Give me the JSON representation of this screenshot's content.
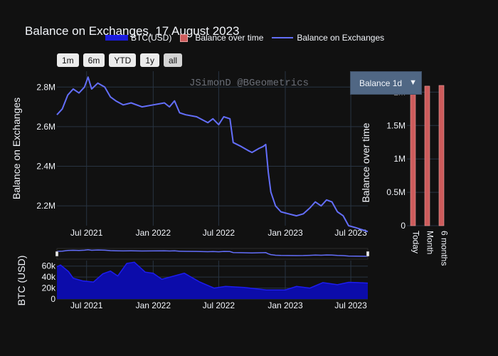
{
  "title": "Balance on Exchanges, 17 August 2023",
  "watermark": "JSimonD @BGeometrics",
  "legend": [
    {
      "name": "BTC(USD)",
      "color": "#1c1cf0",
      "type": "area"
    },
    {
      "name": "Balance over time",
      "color": "#cd5c5c",
      "type": "bar"
    },
    {
      "name": "Balance on Exchanges",
      "color": "#636efa",
      "type": "line"
    }
  ],
  "range_buttons": [
    "1m",
    "6m",
    "YTD",
    "1y",
    "all"
  ],
  "range_active": "all",
  "dropdown": {
    "selected": "Balance 1d",
    "caret": "▼"
  },
  "colors": {
    "background": "#111111",
    "grid": "#283442",
    "text": "#f2f5fa",
    "line": "#636efa",
    "area": "#0c0caa",
    "area_line": "#1c1cf0",
    "bar": "#cd5c5c"
  },
  "chart_data": [
    {
      "type": "line",
      "name": "Balance on Exchanges",
      "ylabel": "Balance on Exchanges",
      "x_range": [
        "2021-04-10",
        "2023-08-17"
      ],
      "x_ticks": [
        "2021-07-01",
        "2022-01-01",
        "2022-07-01",
        "2023-01-01",
        "2023-07-01"
      ],
      "x_tick_labels": [
        "Jul 2021",
        "Jan 2022",
        "Jul 2022",
        "Jan 2023",
        "Jul 2023"
      ],
      "ylim": [
        2100000,
        2880000
      ],
      "y_ticks": [
        2200000,
        2400000,
        2600000,
        2800000
      ],
      "y_tick_labels": [
        "2.2M",
        "2.4M",
        "2.6M",
        "2.8M"
      ],
      "points": [
        [
          "2021-04-10",
          2660000
        ],
        [
          "2021-04-25",
          2690000
        ],
        [
          "2021-05-10",
          2760000
        ],
        [
          "2021-05-25",
          2790000
        ],
        [
          "2021-06-10",
          2770000
        ],
        [
          "2021-06-25",
          2800000
        ],
        [
          "2021-07-05",
          2850000
        ],
        [
          "2021-07-15",
          2790000
        ],
        [
          "2021-08-01",
          2820000
        ],
        [
          "2021-08-20",
          2800000
        ],
        [
          "2021-09-05",
          2750000
        ],
        [
          "2021-09-20",
          2730000
        ],
        [
          "2021-10-10",
          2710000
        ],
        [
          "2021-11-01",
          2720000
        ],
        [
          "2021-12-01",
          2700000
        ],
        [
          "2022-01-01",
          2710000
        ],
        [
          "2022-02-01",
          2720000
        ],
        [
          "2022-02-15",
          2700000
        ],
        [
          "2022-03-01",
          2730000
        ],
        [
          "2022-03-15",
          2670000
        ],
        [
          "2022-04-01",
          2660000
        ],
        [
          "2022-05-01",
          2650000
        ],
        [
          "2022-06-01",
          2620000
        ],
        [
          "2022-06-15",
          2640000
        ],
        [
          "2022-07-01",
          2610000
        ],
        [
          "2022-07-15",
          2650000
        ],
        [
          "2022-08-01",
          2640000
        ],
        [
          "2022-08-10",
          2520000
        ],
        [
          "2022-09-01",
          2500000
        ],
        [
          "2022-09-20",
          2480000
        ],
        [
          "2022-10-01",
          2470000
        ],
        [
          "2022-10-20",
          2490000
        ],
        [
          "2022-11-01",
          2500000
        ],
        [
          "2022-11-08",
          2510000
        ],
        [
          "2022-11-15",
          2370000
        ],
        [
          "2022-11-22",
          2270000
        ],
        [
          "2022-12-05",
          2200000
        ],
        [
          "2022-12-20",
          2170000
        ],
        [
          "2023-01-10",
          2160000
        ],
        [
          "2023-02-01",
          2150000
        ],
        [
          "2023-02-20",
          2160000
        ],
        [
          "2023-03-10",
          2190000
        ],
        [
          "2023-03-25",
          2220000
        ],
        [
          "2023-04-10",
          2200000
        ],
        [
          "2023-04-25",
          2230000
        ],
        [
          "2023-05-10",
          2220000
        ],
        [
          "2023-05-25",
          2170000
        ],
        [
          "2023-06-10",
          2150000
        ],
        [
          "2023-06-25",
          2100000
        ],
        [
          "2023-07-15",
          2090000
        ],
        [
          "2023-08-01",
          2080000
        ],
        [
          "2023-08-17",
          2070000
        ]
      ]
    },
    {
      "type": "bar",
      "name": "Balance over time",
      "ylabel": "Balance over time",
      "categories": [
        "Today",
        "Month",
        "6 months"
      ],
      "values": [
        2070000,
        2090000,
        2100000
      ],
      "ylim": [
        0,
        2100000
      ],
      "y_ticks": [
        0,
        500000,
        1000000,
        1500000,
        2000000
      ],
      "y_tick_labels": [
        "0",
        "0.5M",
        "1M",
        "1.5M",
        "2M"
      ]
    },
    {
      "type": "area",
      "name": "BTC(USD)",
      "ylabel": "BTC (USD)",
      "x_range": [
        "2021-04-10",
        "2023-08-17"
      ],
      "x_ticks": [
        "2021-07-01",
        "2022-01-01",
        "2022-07-01",
        "2023-01-01",
        "2023-07-01"
      ],
      "x_tick_labels": [
        "Jul 2021",
        "Jan 2022",
        "Jul 2022",
        "Jan 2023",
        "Jul 2023"
      ],
      "ylim": [
        0,
        70000
      ],
      "y_ticks": [
        0,
        20000,
        40000,
        60000
      ],
      "y_tick_labels": [
        "0",
        "20k",
        "40k",
        "60k"
      ],
      "points": [
        [
          "2021-04-10",
          59000
        ],
        [
          "2021-04-20",
          62000
        ],
        [
          "2021-05-12",
          50000
        ],
        [
          "2021-05-25",
          38000
        ],
        [
          "2021-06-20",
          33000
        ],
        [
          "2021-07-20",
          31000
        ],
        [
          "2021-08-15",
          46000
        ],
        [
          "2021-09-05",
          51000
        ],
        [
          "2021-09-25",
          42000
        ],
        [
          "2021-10-20",
          65000
        ],
        [
          "2021-11-10",
          67000
        ],
        [
          "2021-12-10",
          49000
        ],
        [
          "2022-01-01",
          47000
        ],
        [
          "2022-01-25",
          36000
        ],
        [
          "2022-03-28",
          47000
        ],
        [
          "2022-05-10",
          31000
        ],
        [
          "2022-06-18",
          20000
        ],
        [
          "2022-07-20",
          23000
        ],
        [
          "2022-09-10",
          21000
        ],
        [
          "2022-11-10",
          16500
        ],
        [
          "2023-01-01",
          16600
        ],
        [
          "2023-02-01",
          23000
        ],
        [
          "2023-03-10",
          20000
        ],
        [
          "2023-04-15",
          30000
        ],
        [
          "2023-05-25",
          26000
        ],
        [
          "2023-06-25",
          30500
        ],
        [
          "2023-07-20",
          30000
        ],
        [
          "2023-08-17",
          29000
        ]
      ]
    }
  ]
}
